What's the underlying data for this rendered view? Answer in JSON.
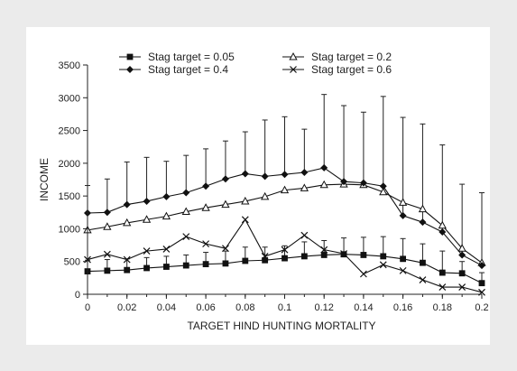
{
  "chart_data": {
    "type": "line",
    "xlabel": "TARGET HIND HUNTING MORTALITY",
    "ylabel": "INCOME",
    "xlim": [
      0,
      0.2
    ],
    "ylim": [
      0,
      3500
    ],
    "x_ticks": [
      "0",
      "0.02",
      "0.04",
      "0.06",
      "0.08",
      "0.1",
      "0.12",
      "0.14",
      "0.16",
      "0.18",
      "0.2"
    ],
    "y_ticks": [
      "0",
      "500",
      "1000",
      "1500",
      "2000",
      "2500",
      "3000",
      "3500"
    ],
    "x": [
      0,
      0.01,
      0.02,
      0.03,
      0.04,
      0.05,
      0.06,
      0.07,
      0.08,
      0.09,
      0.1,
      0.11,
      0.12,
      0.13,
      0.14,
      0.15,
      0.16,
      0.17,
      0.18,
      0.19,
      0.2
    ],
    "legend_position": "top",
    "series": [
      {
        "name": "Stag target = 0.05",
        "marker": "square",
        "values": [
          350,
          360,
          370,
          400,
          420,
          440,
          460,
          470,
          510,
          520,
          550,
          580,
          600,
          610,
          600,
          580,
          540,
          480,
          330,
          320,
          170
        ],
        "error_upper": [
          520,
          530,
          540,
          560,
          580,
          600,
          640,
          660,
          720,
          720,
          740,
          800,
          820,
          860,
          870,
          880,
          850,
          770,
          660,
          500,
          330
        ]
      },
      {
        "name": "Stag target = 0.2",
        "marker": "triangle",
        "values": [
          980,
          1030,
          1090,
          1140,
          1190,
          1260,
          1320,
          1370,
          1420,
          1490,
          1590,
          1620,
          1670,
          1680,
          1670,
          1560,
          1400,
          1300,
          1050,
          700,
          480
        ],
        "error_upper": []
      },
      {
        "name": "Stag target = 0.4",
        "marker": "diamond",
        "values": [
          1240,
          1250,
          1370,
          1420,
          1490,
          1550,
          1650,
          1760,
          1840,
          1800,
          1830,
          1860,
          1930,
          1720,
          1700,
          1650,
          1200,
          1100,
          950,
          600,
          440
        ],
        "error_upper": [
          1660,
          1760,
          2020,
          2090,
          2030,
          2120,
          2220,
          2340,
          2480,
          2660,
          2710,
          2520,
          3050,
          2880,
          2780,
          3020,
          2700,
          2600,
          2280,
          1680,
          1550
        ]
      },
      {
        "name": "Stag target = 0.6",
        "marker": "x",
        "values": [
          530,
          610,
          530,
          660,
          690,
          880,
          770,
          700,
          1140,
          580,
          680,
          900,
          680,
          620,
          310,
          450,
          360,
          220,
          110,
          110,
          30
        ],
        "error_upper": []
      }
    ]
  }
}
